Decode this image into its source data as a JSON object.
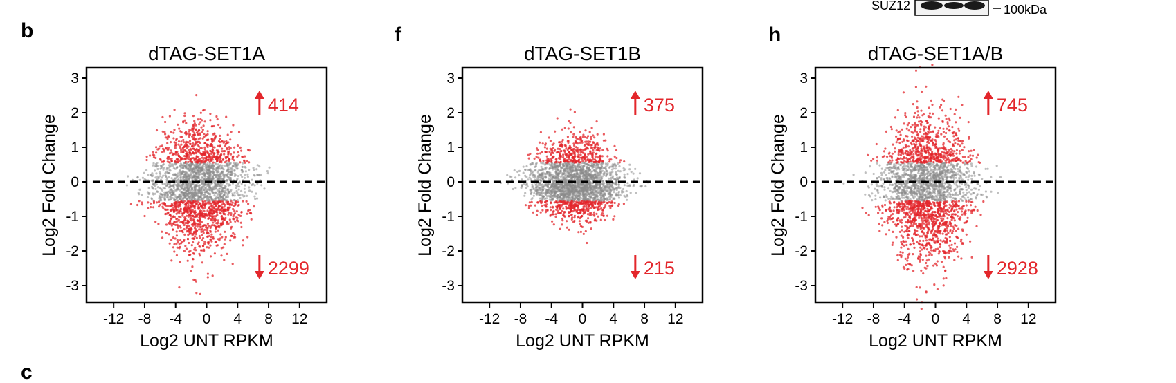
{
  "colors": {
    "significant": "#e3262b",
    "background_points": "#8a8a8a",
    "axis": "#000000"
  },
  "blot": {
    "protein_label": "SUZ12",
    "marker_label": "100kDa"
  },
  "panel_c_letter": "c",
  "chart_data": [
    {
      "type": "scatter",
      "panel": "b",
      "title": "dTAG-SET1A",
      "xlabel": "Log2 UNT RPKM",
      "ylabel": "Log2 Fold Change",
      "xlim": [
        -15.5,
        15.5
      ],
      "ylim": [
        -3.5,
        3.3
      ],
      "xticks": [
        -12,
        -8,
        -4,
        0,
        4,
        8,
        12
      ],
      "yticks": [
        -3,
        -2,
        -1,
        0,
        1,
        2,
        3
      ],
      "reference_line_y": 0,
      "up_count": "414",
      "down_count": "2299",
      "point_cloud": {
        "x_center": -1,
        "x_spread": 5.3,
        "upper_extent": 1.9,
        "lower_extent": 2.3,
        "n_points": 2600
      }
    },
    {
      "type": "scatter",
      "panel": "f",
      "title": "dTAG-SET1B",
      "xlabel": "Log2 UNT RPKM",
      "ylabel": "Log2 Fold Change",
      "xlim": [
        -15.5,
        15.5
      ],
      "ylim": [
        -3.5,
        3.3
      ],
      "xticks": [
        -12,
        -8,
        -4,
        0,
        4,
        8,
        12
      ],
      "yticks": [
        -3,
        -2,
        -1,
        0,
        1,
        2,
        3
      ],
      "reference_line_y": 0,
      "up_count": "375",
      "down_count": "215",
      "point_cloud": {
        "x_center": -1,
        "x_spread": 5.3,
        "upper_extent": 1.5,
        "lower_extent": 1.2,
        "n_points": 2600
      }
    },
    {
      "type": "scatter",
      "panel": "h",
      "title": "dTAG-SET1A/B",
      "xlabel": "Log2 UNT RPKM",
      "ylabel": "Log2 Fold Change",
      "xlim": [
        -15.5,
        15.5
      ],
      "ylim": [
        -3.5,
        3.3
      ],
      "xticks": [
        -12,
        -8,
        -4,
        0,
        4,
        8,
        12
      ],
      "yticks": [
        -3,
        -2,
        -1,
        0,
        1,
        2,
        3
      ],
      "reference_line_y": 0,
      "up_count": "745",
      "down_count": "2928",
      "point_cloud": {
        "x_center": -1,
        "x_spread": 5.3,
        "upper_extent": 2.2,
        "lower_extent": 2.6,
        "n_points": 2600
      }
    }
  ]
}
